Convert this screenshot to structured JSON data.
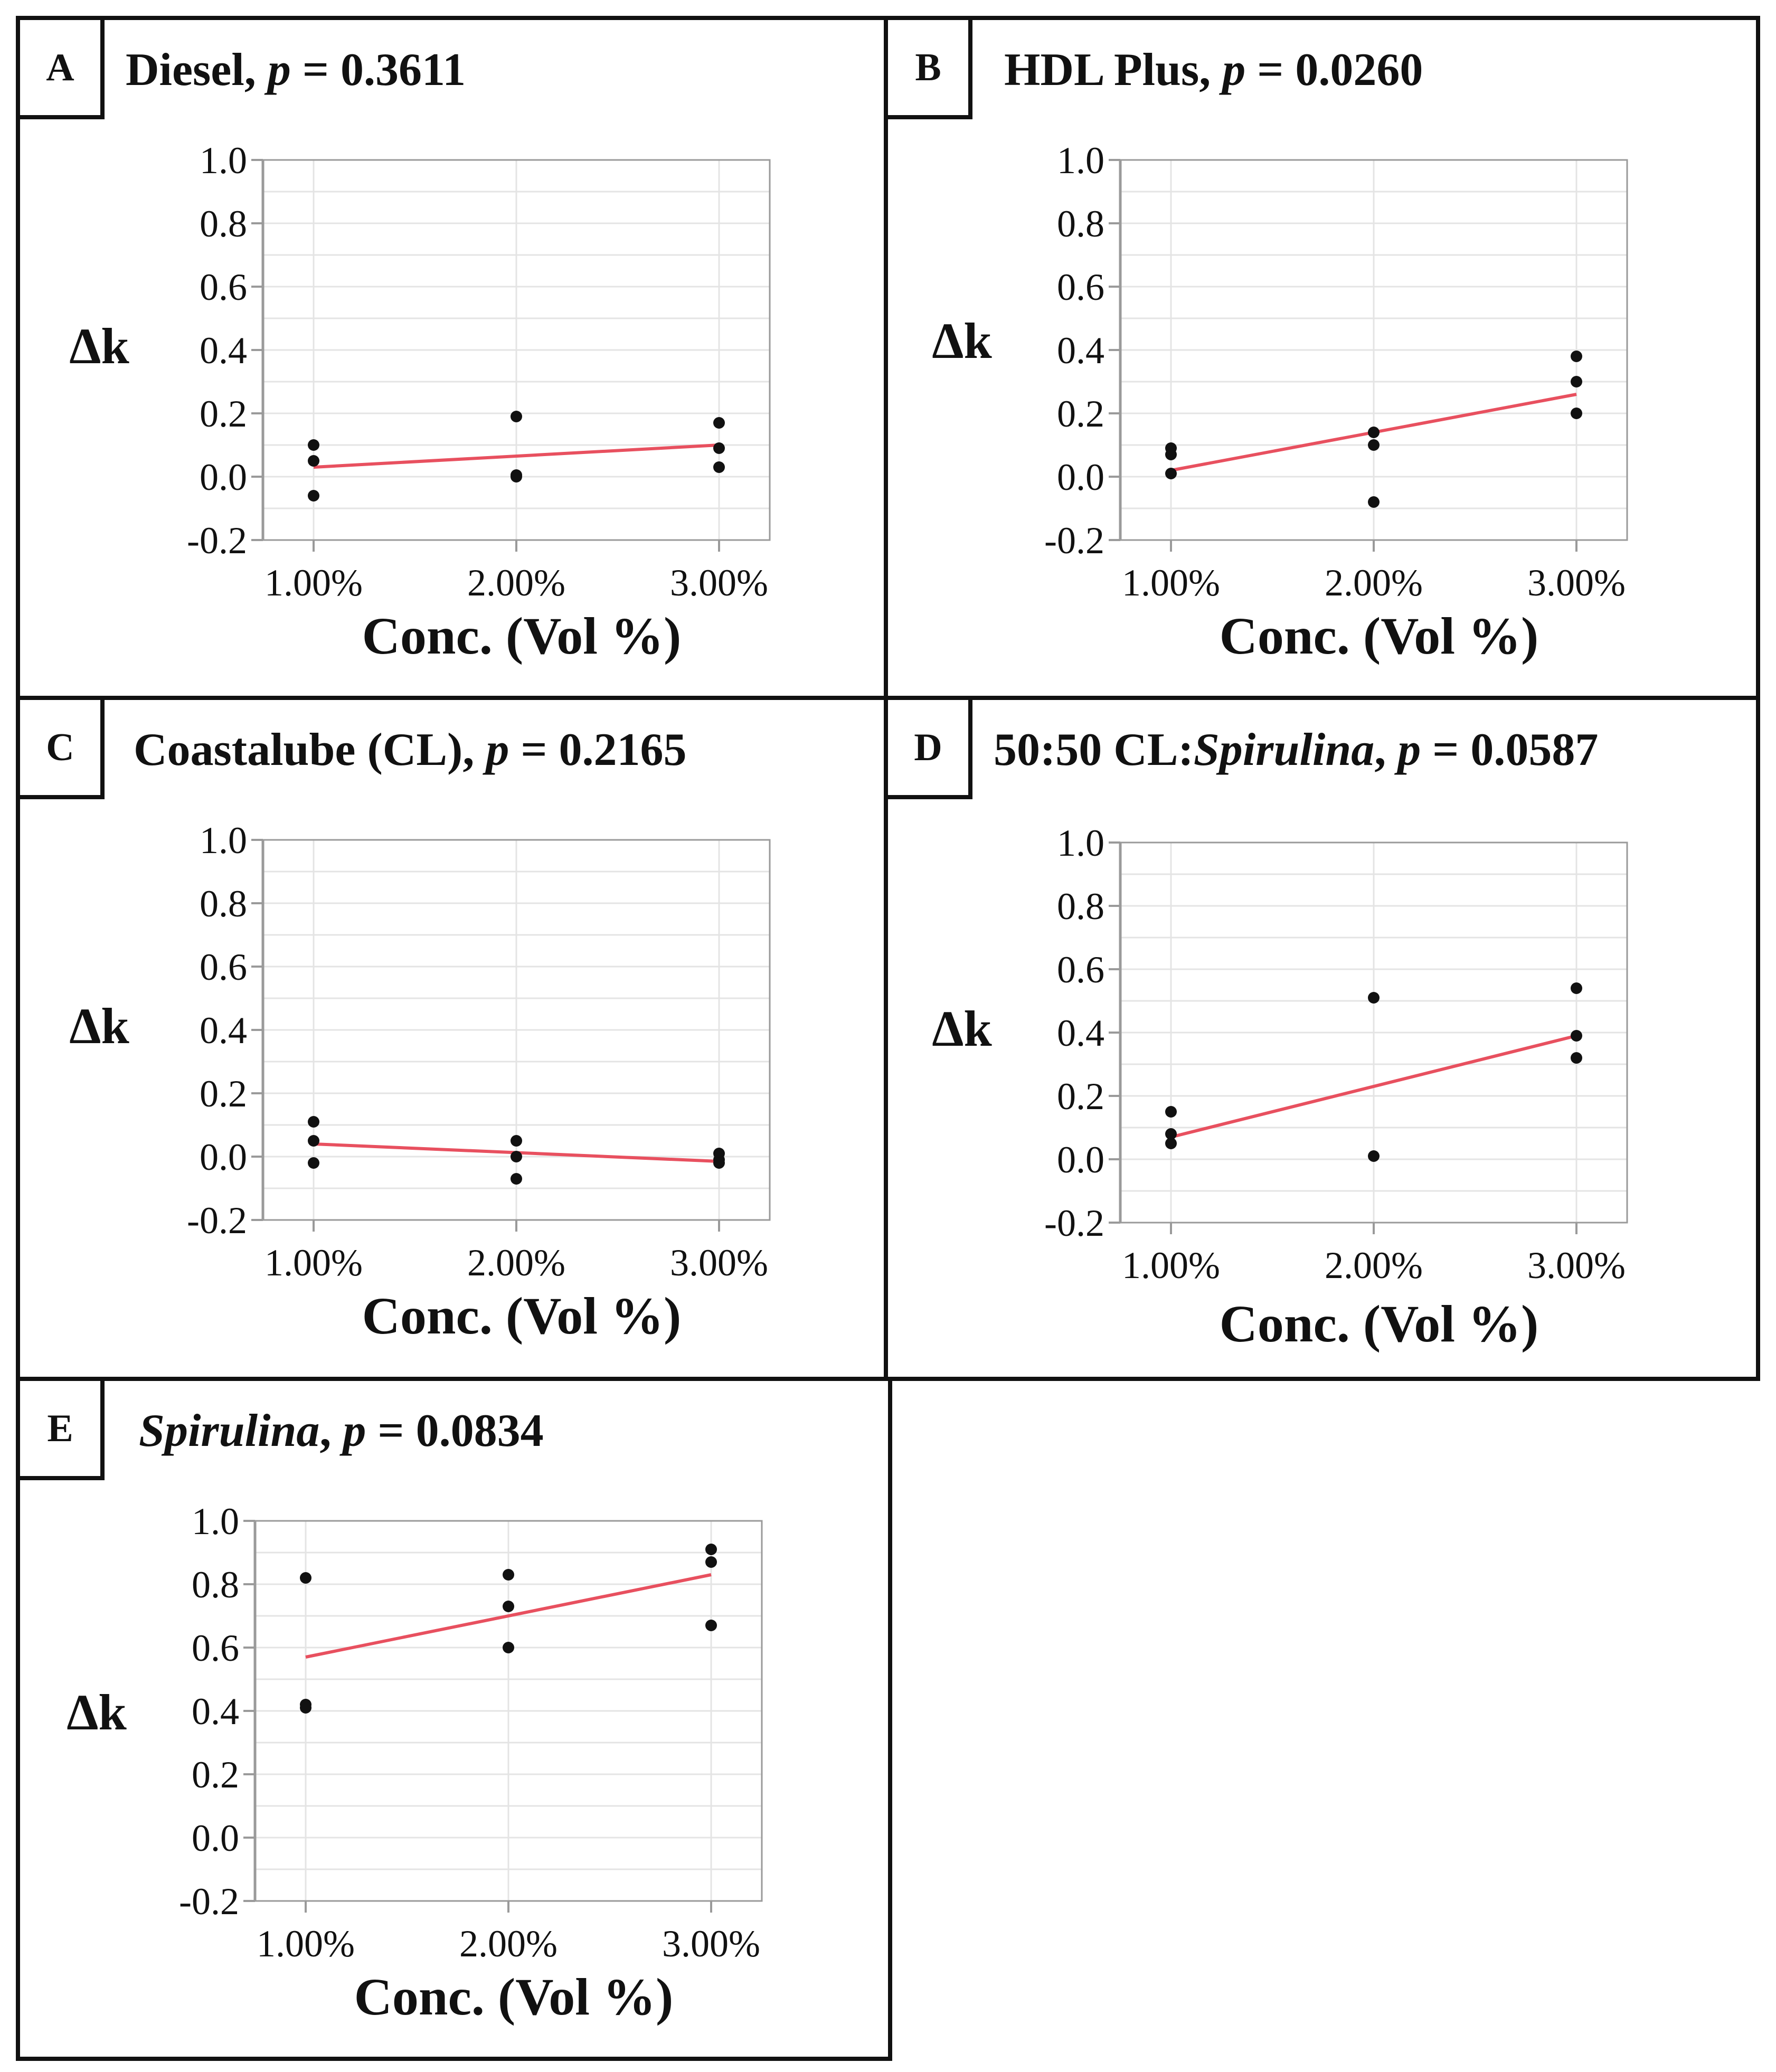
{
  "chart_data": [
    {
      "type": "scatter",
      "panel": "A",
      "title_parts": [
        "Diesel, ",
        "p",
        " = 0.3611"
      ],
      "title": "Diesel, p = 0.3611",
      "xlabel": "Conc. (Vol %)",
      "ylabel": "Δk",
      "x_categories": [
        "1.00%",
        "2.00%",
        "3.00%"
      ],
      "yticks": [
        "1.0",
        "0.8",
        "0.6",
        "0.4",
        "0.2",
        "0.0",
        "-0.2"
      ],
      "ylim": [
        -0.2,
        1.0
      ],
      "points": [
        [
          1,
          0.1
        ],
        [
          1,
          0.05
        ],
        [
          1,
          -0.06
        ],
        [
          2,
          0.19
        ],
        [
          2,
          0.005
        ],
        [
          2,
          0.0
        ],
        [
          3,
          0.17
        ],
        [
          3,
          0.09
        ],
        [
          3,
          0.03
        ]
      ],
      "fit_line": [
        [
          1,
          0.03
        ],
        [
          3,
          0.1
        ]
      ],
      "grid": true
    },
    {
      "type": "scatter",
      "panel": "B",
      "title_parts": [
        "HDL Plus, ",
        "p",
        " = 0.0260"
      ],
      "title": "HDL Plus, p = 0.0260",
      "xlabel": "Conc. (Vol %)",
      "ylabel": "Δk",
      "x_categories": [
        "1.00%",
        "2.00%",
        "3.00%"
      ],
      "yticks": [
        "1.0",
        "0.8",
        "0.6",
        "0.4",
        "0.2",
        "0.0",
        "-0.2"
      ],
      "ylim": [
        -0.2,
        1.0
      ],
      "points": [
        [
          1,
          0.09
        ],
        [
          1,
          0.07
        ],
        [
          1,
          0.01
        ],
        [
          2,
          0.14
        ],
        [
          2,
          0.1
        ],
        [
          2,
          -0.08
        ],
        [
          3,
          0.38
        ],
        [
          3,
          0.3
        ],
        [
          3,
          0.2
        ]
      ],
      "fit_line": [
        [
          1,
          0.02
        ],
        [
          3,
          0.26
        ]
      ],
      "grid": true
    },
    {
      "type": "scatter",
      "panel": "C",
      "title_parts": [
        "Coastalube (CL), ",
        "p",
        " = 0.2165"
      ],
      "title": "Coastalube (CL), p = 0.2165",
      "xlabel": "Conc. (Vol %)",
      "ylabel": "Δk",
      "x_categories": [
        "1.00%",
        "2.00%",
        "3.00%"
      ],
      "yticks": [
        "1.0",
        "0.8",
        "0.6",
        "0.4",
        "0.2",
        "0.0",
        "-0.2"
      ],
      "ylim": [
        -0.2,
        1.0
      ],
      "points": [
        [
          1,
          0.11
        ],
        [
          1,
          0.05
        ],
        [
          1,
          -0.02
        ],
        [
          2,
          0.05
        ],
        [
          2,
          0.0
        ],
        [
          2,
          -0.07
        ],
        [
          3,
          0.01
        ],
        [
          3,
          -0.01
        ],
        [
          3,
          -0.02
        ]
      ],
      "fit_line": [
        [
          1,
          0.04
        ],
        [
          3,
          -0.015
        ]
      ],
      "grid": true
    },
    {
      "type": "scatter",
      "panel": "D",
      "title_parts": [
        "50:50 CL:",
        "Spirulina",
        ", ",
        "p",
        " = 0.0587"
      ],
      "title": "50:50 CL:Spirulina, p = 0.0587",
      "xlabel": "Conc. (Vol %)",
      "ylabel": "Δk",
      "x_categories": [
        "1.00%",
        "2.00%",
        "3.00%"
      ],
      "yticks": [
        "1.0",
        "0.8",
        "0.6",
        "0.4",
        "0.2",
        "0.0",
        "-0.2"
      ],
      "ylim": [
        -0.2,
        1.0
      ],
      "points": [
        [
          1,
          0.15
        ],
        [
          1,
          0.08
        ],
        [
          1,
          0.05
        ],
        [
          2,
          0.51
        ],
        [
          2,
          0.01
        ],
        [
          3,
          0.54
        ],
        [
          3,
          0.39
        ],
        [
          3,
          0.32
        ]
      ],
      "fit_line": [
        [
          1,
          0.07
        ],
        [
          3,
          0.39
        ]
      ],
      "grid": true
    },
    {
      "type": "scatter",
      "panel": "E",
      "title_parts": [
        "Spirulina",
        ", ",
        "p",
        " = 0.0834"
      ],
      "title": "Spirulina, p = 0.0834",
      "xlabel": "Conc. (Vol %)",
      "ylabel": "Δk",
      "x_categories": [
        "1.00%",
        "2.00%",
        "3.00%"
      ],
      "yticks": [
        "1.0",
        "0.8",
        "0.6",
        "0.4",
        "0.2",
        "0.0",
        "-0.2"
      ],
      "ylim": [
        -0.2,
        1.0
      ],
      "points": [
        [
          1,
          0.82
        ],
        [
          1,
          0.42
        ],
        [
          1,
          0.41
        ],
        [
          2,
          0.83
        ],
        [
          2,
          0.73
        ],
        [
          2,
          0.6
        ],
        [
          3,
          0.91
        ],
        [
          3,
          0.87
        ],
        [
          3,
          0.67
        ]
      ],
      "fit_line": [
        [
          1,
          0.57
        ],
        [
          3,
          0.83
        ]
      ],
      "grid": true
    }
  ],
  "colors": {
    "fit_line": "#e8505f",
    "points": "#111111",
    "grid": "#e4e4e4",
    "axis": "#9a9a9a",
    "border": "#111111"
  }
}
